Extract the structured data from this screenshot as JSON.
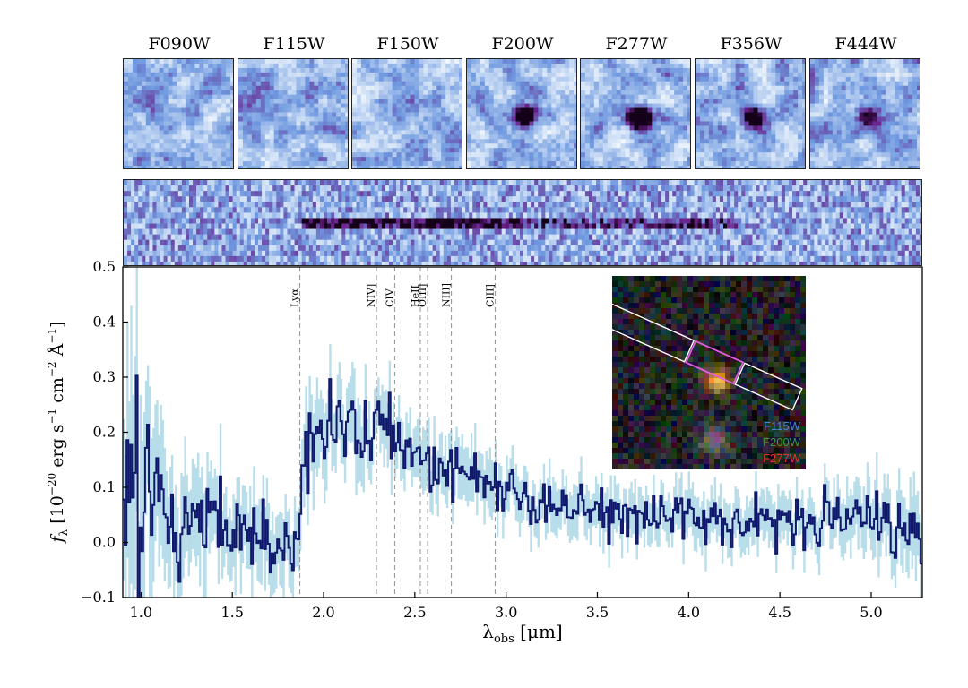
{
  "stamps": {
    "filters": [
      "F090W",
      "F115W",
      "F150W",
      "F200W",
      "F277W",
      "F356W",
      "F444W"
    ],
    "source_strength": [
      0,
      0,
      0.1,
      1.0,
      1.0,
      0.8,
      0.5
    ]
  },
  "inset": {
    "legend": [
      {
        "label": "F115W",
        "color": "#4f7fd6"
      },
      {
        "label": "F200W",
        "color": "#3c9a3c"
      },
      {
        "label": "F277W",
        "color": "#e8322e"
      }
    ]
  },
  "colors": {
    "flux_line": "#10186e",
    "error_band": "#add8e6",
    "line_marker": "#999999",
    "stamp_light": "#cfe0f6",
    "stamp_mid": "#6e98df",
    "stamp_dark": "#6a1f8a"
  },
  "chart_data": {
    "type": "line",
    "xlabel": "λ_obs [μm]",
    "ylabel": "f_λ [10^−20 erg s^−1 cm^−2 Å^−1]",
    "xlim": [
      0.9,
      5.28
    ],
    "ylim": [
      -0.1,
      0.5
    ],
    "xticks": [
      "1.0",
      "1.5",
      "2.0",
      "2.5",
      "3.0",
      "3.5",
      "4.0",
      "4.5",
      "5.0"
    ],
    "yticks": [
      "−0.1",
      "0.0",
      "0.1",
      "0.2",
      "0.3",
      "0.4",
      "0.5"
    ],
    "emission_lines": [
      {
        "label": "Lyα",
        "x": 1.87
      },
      {
        "label": "NIV]",
        "x": 2.29
      },
      {
        "label": "CIV",
        "x": 2.39
      },
      {
        "label": "HeII",
        "x": 2.53
      },
      {
        "label": "OIII]",
        "x": 2.57
      },
      {
        "label": "NIII]",
        "x": 2.7
      },
      {
        "label": "CIII]",
        "x": 2.94
      }
    ],
    "series": [
      {
        "x_anchor": [
          0.9,
          0.93,
          0.96,
          0.99,
          1.02,
          1.05,
          1.1,
          1.2,
          1.3,
          1.4,
          1.5,
          1.6,
          1.7,
          1.8,
          1.84,
          1.87,
          1.9,
          2.0,
          2.1,
          2.2,
          2.3,
          2.4,
          2.5,
          2.6,
          2.7,
          2.8,
          2.9,
          3.0,
          3.1,
          3.3,
          3.5,
          3.7,
          3.9,
          4.1,
          4.3,
          4.5,
          4.7,
          4.9,
          5.1,
          5.28
        ],
        "y_anchor": [
          0.0,
          0.15,
          0.05,
          -0.02,
          0.1,
          0.2,
          0.08,
          -0.02,
          0.06,
          0.05,
          0.02,
          0.01,
          0.01,
          0.0,
          -0.02,
          0.05,
          0.15,
          0.22,
          0.22,
          0.2,
          0.22,
          0.19,
          0.15,
          0.14,
          0.12,
          0.12,
          0.1,
          0.1,
          0.06,
          0.07,
          0.06,
          0.05,
          0.05,
          0.04,
          0.04,
          0.04,
          0.04,
          0.04,
          0.04,
          0.03
        ],
        "error_anchor": [
          0.2,
          0.2,
          0.2,
          0.2,
          0.15,
          0.15,
          0.1,
          0.09,
          0.08,
          0.08,
          0.07,
          0.06,
          0.06,
          0.06,
          0.06,
          0.06,
          0.07,
          0.07,
          0.06,
          0.06,
          0.06,
          0.05,
          0.05,
          0.05,
          0.05,
          0.05,
          0.05,
          0.04,
          0.04,
          0.04,
          0.04,
          0.04,
          0.04,
          0.04,
          0.04,
          0.04,
          0.04,
          0.05,
          0.06,
          0.06
        ]
      }
    ],
    "grid": false
  }
}
